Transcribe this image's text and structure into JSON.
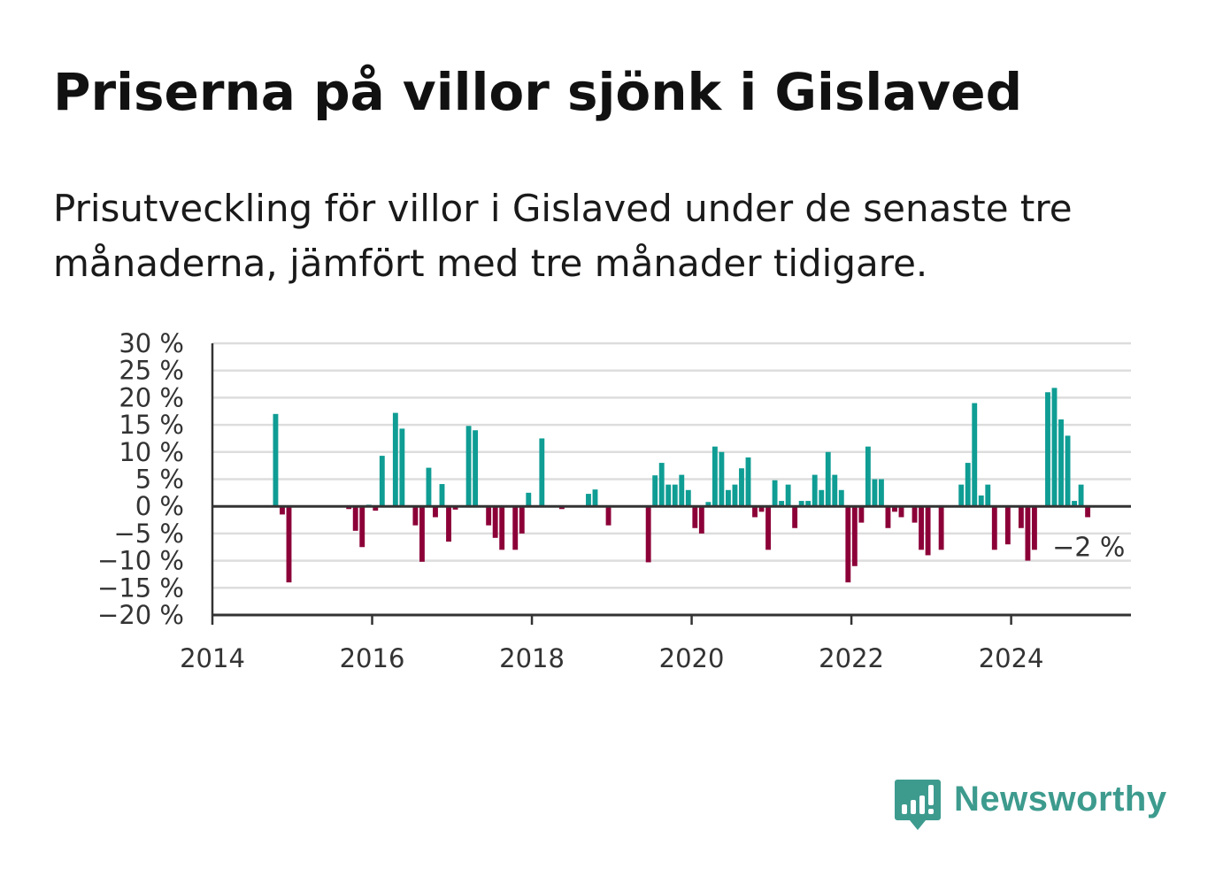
{
  "title": "Priserna på villor sjönk i Gislaved",
  "subtitle": "Prisutveckling för villor i Gislaved under de senaste tre månaderna, jämfört med tre månader tidigare.",
  "brand": {
    "name": "Newsworthy",
    "color": "#3d9b8e",
    "icon": "bar-chart-speech-bubble-icon"
  },
  "colors": {
    "positive": "#0f9d94",
    "negative": "#8c0038",
    "grid": "#dddddd",
    "axis": "#333333"
  },
  "chart_data": {
    "type": "bar",
    "title": "Priserna på villor sjönk i Gislaved",
    "xlabel": "",
    "ylabel": "",
    "ylim": [
      -20,
      30
    ],
    "xlim": [
      "2014-01",
      "2025-07"
    ],
    "y_ticks": [
      {
        "value": 30,
        "label": "30 %"
      },
      {
        "value": 25,
        "label": "25 %"
      },
      {
        "value": 20,
        "label": "20 %"
      },
      {
        "value": 15,
        "label": "15 %"
      },
      {
        "value": 10,
        "label": "10 %"
      },
      {
        "value": 5,
        "label": "5 %"
      },
      {
        "value": 0,
        "label": "0 %"
      },
      {
        "value": -5,
        "label": "−5 %"
      },
      {
        "value": -10,
        "label": "−10 %"
      },
      {
        "value": -15,
        "label": "−15 %"
      },
      {
        "value": -20,
        "label": "−20 %"
      }
    ],
    "x_ticks": [
      {
        "value": "2014-01",
        "label": "2014"
      },
      {
        "value": "2016-01",
        "label": "2016"
      },
      {
        "value": "2018-01",
        "label": "2018"
      },
      {
        "value": "2020-01",
        "label": "2020"
      },
      {
        "value": "2022-01",
        "label": "2022"
      },
      {
        "value": "2024-01",
        "label": "2024"
      }
    ],
    "grid": true,
    "legend": "none",
    "annotation": {
      "label": "−2 %",
      "date": "2024-12"
    },
    "x": [
      "2014-10",
      "2014-11",
      "2014-12",
      "2015-09",
      "2015-10",
      "2015-11",
      "2015-12",
      "2016-01",
      "2016-02",
      "2016-03",
      "2016-04",
      "2016-05",
      "2016-06",
      "2016-07",
      "2016-08",
      "2016-09",
      "2016-10",
      "2016-11",
      "2016-12",
      "2017-01",
      "2017-02",
      "2017-03",
      "2017-04",
      "2017-05",
      "2017-06",
      "2017-07",
      "2017-08",
      "2017-09",
      "2017-10",
      "2017-11",
      "2017-12",
      "2018-01",
      "2018-02",
      "2018-03",
      "2018-04",
      "2018-05",
      "2018-08",
      "2018-09",
      "2018-10",
      "2018-11",
      "2018-12",
      "2019-06",
      "2019-07",
      "2019-08",
      "2019-09",
      "2019-10",
      "2019-11",
      "2019-12",
      "2020-01",
      "2020-02",
      "2020-03",
      "2020-04",
      "2020-05",
      "2020-06",
      "2020-07",
      "2020-08",
      "2020-09",
      "2020-10",
      "2020-11",
      "2020-12",
      "2021-01",
      "2021-02",
      "2021-03",
      "2021-04",
      "2021-05",
      "2021-06",
      "2021-07",
      "2021-08",
      "2021-09",
      "2021-10",
      "2021-11",
      "2021-12",
      "2022-01",
      "2022-02",
      "2022-03",
      "2022-04",
      "2022-05",
      "2022-06",
      "2022-07",
      "2022-08",
      "2022-09",
      "2022-10",
      "2022-11",
      "2022-12",
      "2023-01",
      "2023-02",
      "2023-03",
      "2023-04",
      "2023-05",
      "2023-06",
      "2023-07",
      "2023-08",
      "2023-09",
      "2023-10",
      "2023-11",
      "2023-12",
      "2024-01",
      "2024-02",
      "2024-03",
      "2024-04",
      "2024-05",
      "2024-06",
      "2024-07",
      "2024-08",
      "2024-09",
      "2024-10",
      "2024-11",
      "2024-12"
    ],
    "values": [
      17,
      -1.5,
      -14,
      -0.5,
      -4.5,
      -7.5,
      0.3,
      -0.8,
      9.3,
      0,
      17.2,
      14.3,
      0,
      -3.5,
      -10.2,
      7.1,
      -2,
      4.1,
      -6.5,
      -0.6,
      0,
      14.8,
      14,
      0,
      -3.5,
      -5.8,
      -8,
      0,
      -8,
      -5,
      2.5,
      0,
      12.5,
      0,
      0,
      -0.5,
      0,
      2.3,
      3.1,
      0,
      -3.5,
      -10.3,
      5.7,
      8,
      4,
      4,
      5.8,
      3,
      -4,
      -5,
      0.8,
      11,
      10,
      3,
      4,
      7,
      9,
      -2,
      -1,
      -8,
      4.8,
      1,
      4,
      -4,
      1,
      1,
      5.8,
      3,
      10,
      5.8,
      3,
      -14,
      -11,
      -3,
      11,
      5,
      5,
      -4,
      -1,
      -2,
      0,
      -3,
      -8,
      -9,
      0,
      -8,
      0,
      0,
      4,
      8,
      19,
      2,
      4,
      -8,
      0,
      -7,
      0,
      -4,
      -10,
      -8,
      0,
      21,
      21.8,
      16,
      13,
      1,
      4,
      -2
    ]
  }
}
